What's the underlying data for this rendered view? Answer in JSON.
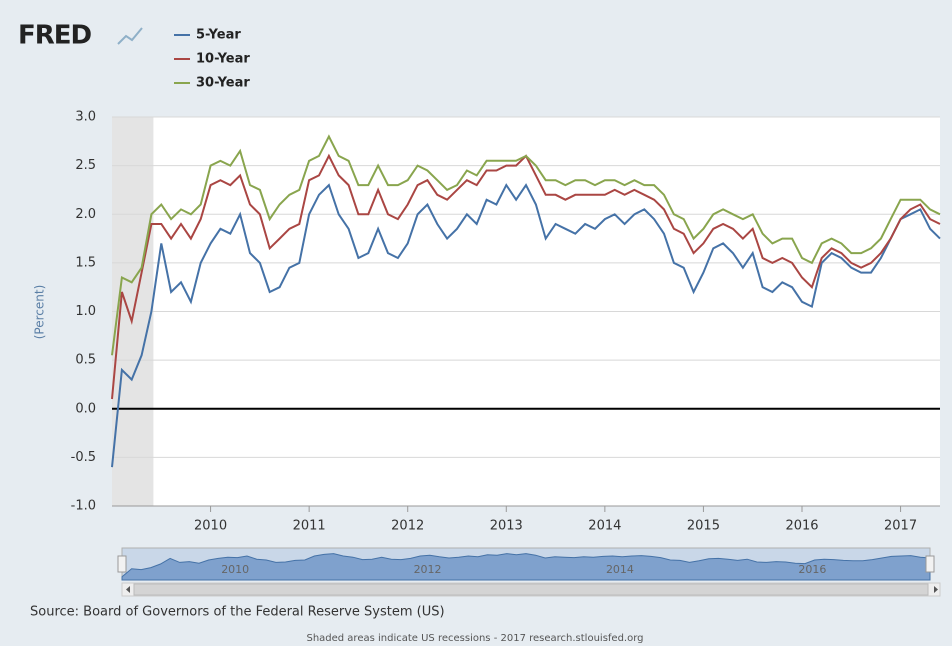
{
  "chart_data": {
    "type": "line",
    "logo": "FRED",
    "y_label": "(Percent)",
    "source": "Source: Board of Governors of the Federal Reserve System (US)",
    "footnote": "Shaded areas indicate US recessions - 2017 research.stlouisfed.org",
    "x": [
      2009.0,
      2009.1,
      2009.2,
      2009.3,
      2009.4,
      2009.5,
      2009.6,
      2009.7,
      2009.8,
      2009.9,
      2010.0,
      2010.1,
      2010.2,
      2010.3,
      2010.4,
      2010.5,
      2010.6,
      2010.7,
      2010.8,
      2010.9,
      2011.0,
      2011.1,
      2011.2,
      2011.3,
      2011.4,
      2011.5,
      2011.6,
      2011.7,
      2011.8,
      2011.9,
      2012.0,
      2012.1,
      2012.2,
      2012.3,
      2012.4,
      2012.5,
      2012.6,
      2012.7,
      2012.8,
      2012.9,
      2013.0,
      2013.1,
      2013.2,
      2013.3,
      2013.4,
      2013.5,
      2013.6,
      2013.7,
      2013.8,
      2013.9,
      2014.0,
      2014.1,
      2014.2,
      2014.3,
      2014.4,
      2014.5,
      2014.6,
      2014.7,
      2014.8,
      2014.9,
      2015.0,
      2015.1,
      2015.2,
      2015.3,
      2015.4,
      2015.5,
      2015.6,
      2015.7,
      2015.8,
      2015.9,
      2016.0,
      2016.1,
      2016.2,
      2016.3,
      2016.4,
      2016.5,
      2016.6,
      2016.7,
      2016.8,
      2016.9,
      2017.0,
      2017.1,
      2017.2,
      2017.3,
      2017.4
    ],
    "series": [
      {
        "name": "5-Year",
        "color": "#4572a7",
        "values": [
          -0.6,
          0.4,
          0.3,
          0.55,
          1.0,
          1.7,
          1.2,
          1.3,
          1.1,
          1.5,
          1.7,
          1.85,
          1.8,
          2.0,
          1.6,
          1.5,
          1.2,
          1.25,
          1.45,
          1.5,
          2.0,
          2.2,
          2.3,
          2.0,
          1.85,
          1.55,
          1.6,
          1.85,
          1.6,
          1.55,
          1.7,
          2.0,
          2.1,
          1.9,
          1.75,
          1.85,
          2.0,
          1.9,
          2.15,
          2.1,
          2.3,
          2.15,
          2.3,
          2.1,
          1.75,
          1.9,
          1.85,
          1.8,
          1.9,
          1.85,
          1.95,
          2.0,
          1.9,
          2.0,
          2.05,
          1.95,
          1.8,
          1.5,
          1.45,
          1.2,
          1.4,
          1.65,
          1.7,
          1.6,
          1.45,
          1.6,
          1.25,
          1.2,
          1.3,
          1.25,
          1.1,
          1.05,
          1.5,
          1.6,
          1.55,
          1.45,
          1.4,
          1.4,
          1.55,
          1.75,
          1.95,
          2.0,
          2.05,
          1.85,
          1.75
        ]
      },
      {
        "name": "10-Year",
        "color": "#aa4643",
        "values": [
          0.1,
          1.2,
          0.9,
          1.4,
          1.9,
          1.9,
          1.75,
          1.9,
          1.75,
          1.95,
          2.3,
          2.35,
          2.3,
          2.4,
          2.1,
          2.0,
          1.65,
          1.75,
          1.85,
          1.9,
          2.35,
          2.4,
          2.6,
          2.4,
          2.3,
          2.0,
          2.0,
          2.25,
          2.0,
          1.95,
          2.1,
          2.3,
          2.35,
          2.2,
          2.15,
          2.25,
          2.35,
          2.3,
          2.45,
          2.45,
          2.5,
          2.5,
          2.6,
          2.4,
          2.2,
          2.2,
          2.15,
          2.2,
          2.2,
          2.2,
          2.2,
          2.25,
          2.2,
          2.25,
          2.2,
          2.15,
          2.05,
          1.85,
          1.8,
          1.6,
          1.7,
          1.85,
          1.9,
          1.85,
          1.75,
          1.85,
          1.55,
          1.5,
          1.55,
          1.5,
          1.35,
          1.25,
          1.55,
          1.65,
          1.6,
          1.5,
          1.45,
          1.5,
          1.6,
          1.75,
          1.95,
          2.05,
          2.1,
          1.95,
          1.9
        ]
      },
      {
        "name": "30-Year",
        "color": "#89a54e",
        "values": [
          0.55,
          1.35,
          1.3,
          1.45,
          2.0,
          2.1,
          1.95,
          2.05,
          2.0,
          2.1,
          2.5,
          2.55,
          2.5,
          2.65,
          2.3,
          2.25,
          1.95,
          2.1,
          2.2,
          2.25,
          2.55,
          2.6,
          2.8,
          2.6,
          2.55,
          2.3,
          2.3,
          2.5,
          2.3,
          2.3,
          2.35,
          2.5,
          2.45,
          2.35,
          2.25,
          2.3,
          2.45,
          2.4,
          2.55,
          2.55,
          2.55,
          2.55,
          2.6,
          2.5,
          2.35,
          2.35,
          2.3,
          2.35,
          2.35,
          2.3,
          2.35,
          2.35,
          2.3,
          2.35,
          2.3,
          2.3,
          2.2,
          2.0,
          1.95,
          1.75,
          1.85,
          2.0,
          2.05,
          2.0,
          1.95,
          2.0,
          1.8,
          1.7,
          1.75,
          1.75,
          1.55,
          1.5,
          1.7,
          1.75,
          1.7,
          1.6,
          1.6,
          1.65,
          1.75,
          1.95,
          2.15,
          2.15,
          2.15,
          2.05,
          2.0
        ]
      }
    ],
    "recessions": [
      [
        2009.0,
        2009.42
      ]
    ],
    "xlim": [
      2009.0,
      2017.4
    ],
    "xticks": [
      2010,
      2011,
      2012,
      2013,
      2014,
      2015,
      2016,
      2017
    ],
    "ylim": [
      -1.0,
      3.0
    ],
    "yticks": [
      {
        "value": -1.0,
        "label": "-1.0"
      },
      {
        "value": -0.5,
        "label": "-0.5"
      },
      {
        "value": 0.0,
        "label": "0.0"
      },
      {
        "value": 0.5,
        "label": "0.5"
      },
      {
        "value": 1.0,
        "label": "1.0"
      },
      {
        "value": 1.5,
        "label": "1.5"
      },
      {
        "value": 2.0,
        "label": "2.0"
      },
      {
        "value": 2.5,
        "label": "2.5"
      },
      {
        "value": 3.0,
        "label": "3.0"
      }
    ],
    "grid": true,
    "navigator_xticks": [
      2010,
      2012,
      2014,
      2016
    ]
  }
}
